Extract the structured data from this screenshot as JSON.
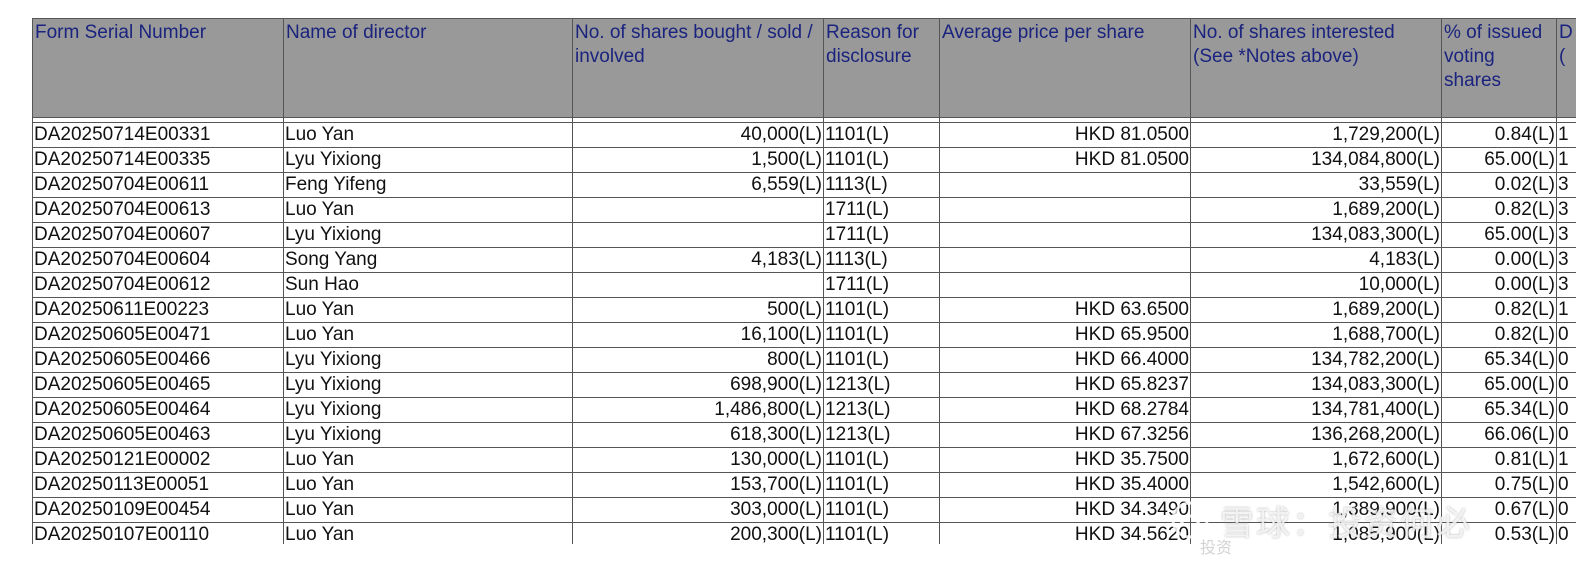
{
  "table": {
    "headers": [
      "Form Serial Number",
      "Name of director",
      "No. of shares bought / sold / involved",
      "Reason for disclosure",
      "Average price per share",
      "No. of shares interested (See *Notes above)",
      "% of issued voting shares",
      "D e ("
    ],
    "rows": [
      [
        "DA20250714E00331",
        "Luo Yan",
        "40,000(L)",
        "1101(L)",
        "HKD 81.0500",
        "1,729,200(L)",
        "0.84(L)",
        "1"
      ],
      [
        "DA20250714E00335",
        "Lyu Yixiong",
        "1,500(L)",
        "1101(L)",
        "HKD 81.0500",
        "134,084,800(L)",
        "65.00(L)",
        "1"
      ],
      [
        "DA20250704E00611",
        "Feng Yifeng",
        "6,559(L)",
        "1113(L)",
        "",
        "33,559(L)",
        "0.02(L)",
        "3"
      ],
      [
        "DA20250704E00613",
        "Luo Yan",
        "",
        "1711(L)",
        "",
        "1,689,200(L)",
        "0.82(L)",
        "3"
      ],
      [
        "DA20250704E00607",
        "Lyu Yixiong",
        "",
        "1711(L)",
        "",
        "134,083,300(L)",
        "65.00(L)",
        "3"
      ],
      [
        "DA20250704E00604",
        "Song Yang",
        "4,183(L)",
        "1113(L)",
        "",
        "4,183(L)",
        "0.00(L)",
        "3"
      ],
      [
        "DA20250704E00612",
        "Sun Hao",
        "",
        "1711(L)",
        "",
        "10,000(L)",
        "0.00(L)",
        "3"
      ],
      [
        "DA20250611E00223",
        "Luo Yan",
        "500(L)",
        "1101(L)",
        "HKD 63.6500",
        "1,689,200(L)",
        "0.82(L)",
        "1"
      ],
      [
        "DA20250605E00471",
        "Luo Yan",
        "16,100(L)",
        "1101(L)",
        "HKD 65.9500",
        "1,688,700(L)",
        "0.82(L)",
        "0"
      ],
      [
        "DA20250605E00466",
        "Lyu Yixiong",
        "800(L)",
        "1101(L)",
        "HKD 66.4000",
        "134,782,200(L)",
        "65.34(L)",
        "0"
      ],
      [
        "DA20250605E00465",
        "Lyu Yixiong",
        "698,900(L)",
        "1213(L)",
        "HKD 65.8237",
        "134,083,300(L)",
        "65.00(L)",
        "0"
      ],
      [
        "DA20250605E00464",
        "Lyu Yixiong",
        "1,486,800(L)",
        "1213(L)",
        "HKD 68.2784",
        "134,781,400(L)",
        "65.34(L)",
        "0"
      ],
      [
        "DA20250605E00463",
        "Lyu Yixiong",
        "618,300(L)",
        "1213(L)",
        "HKD 67.3256",
        "136,268,200(L)",
        "66.06(L)",
        "0"
      ],
      [
        "DA20250121E00002",
        "Luo Yan",
        "130,000(L)",
        "1101(L)",
        "HKD 35.7500",
        "1,672,600(L)",
        "0.81(L)",
        "1"
      ],
      [
        "DA20250113E00051",
        "Luo Yan",
        "153,700(L)",
        "1101(L)",
        "HKD 35.4000",
        "1,542,600(L)",
        "0.75(L)",
        "0"
      ],
      [
        "DA20250109E00454",
        "Luo Yan",
        "303,000(L)",
        "1101(L)",
        "HKD 34.3490",
        "1,389,900(L)",
        "0.67(L)",
        "0"
      ],
      [
        "DA20250107E00110",
        "Luo Yan",
        "200,300(L)",
        "1101(L)",
        "HKD 34.5620",
        "1,085,900(L)",
        "0.53(L)",
        "0"
      ]
    ]
  },
  "watermark": {
    "brand": "雪球：投资何必",
    "sub": "投资"
  },
  "colors": {
    "header_bg": "#999999",
    "header_text": "#1a237e",
    "grid": "#555555"
  }
}
